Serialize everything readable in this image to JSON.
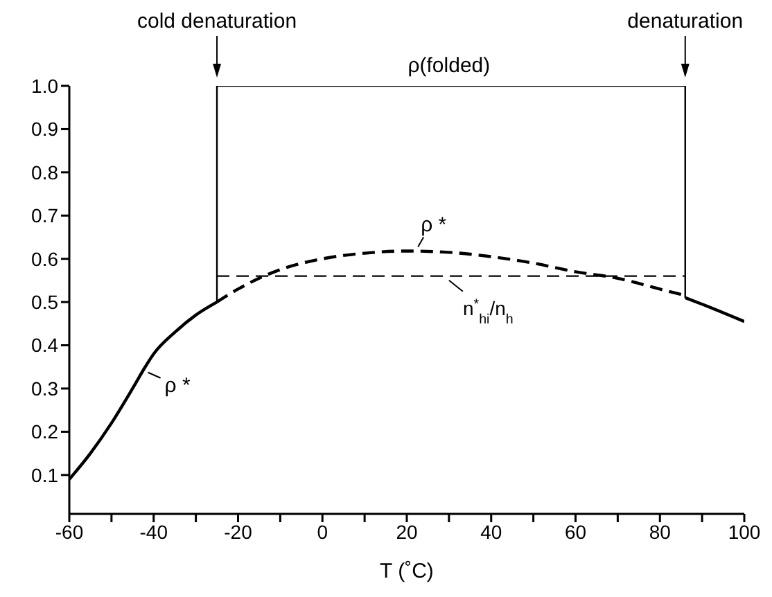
{
  "chart_data": {
    "type": "line",
    "xlabel": "T (˚C)",
    "xlim": [
      -60,
      100
    ],
    "xticks": [
      -60,
      {
        "value": -50,
        "label": null
      },
      -40,
      {
        "value": -30,
        "label": null
      },
      -20,
      {
        "value": -10,
        "label": null
      },
      0,
      {
        "value": 10,
        "label": null
      },
      20,
      {
        "value": 30,
        "label": null
      },
      40,
      {
        "value": 50,
        "label": null
      },
      60,
      {
        "value": 70,
        "label": null
      },
      80,
      {
        "value": 90,
        "label": null
      },
      100
    ],
    "ylim": [
      0.01,
      1.0
    ],
    "yticks": [
      0.1,
      0.2,
      0.3,
      0.4,
      0.5,
      0.6,
      0.7,
      0.8,
      0.9,
      {
        "value": 1.0,
        "label": "1.0"
      }
    ],
    "marker": "none",
    "series": [
      {
        "color": "#000000",
        "line_style": "solid",
        "x": [
          -60,
          -55,
          -50,
          -45,
          -42,
          -40,
          -35,
          -30,
          -25
        ],
        "values": [
          0.09,
          0.15,
          0.22,
          0.3,
          0.35,
          0.38,
          0.43,
          0.47,
          0.5
        ]
      },
      {
        "color": "#000000",
        "line_style": "dashed",
        "x": [
          -25,
          -20,
          -15,
          -10,
          0,
          10,
          20,
          30,
          40,
          50,
          60,
          70,
          80,
          86
        ],
        "values": [
          0.5,
          0.53,
          0.555,
          0.575,
          0.6,
          0.613,
          0.618,
          0.615,
          0.605,
          0.59,
          0.57,
          0.555,
          0.53,
          0.515
        ]
      },
      {
        "color": "#000000",
        "line_style": "solid",
        "x": [
          86,
          90,
          100
        ],
        "values": [
          0.51,
          0.495,
          0.455
        ]
      },
      {
        "color": "#000000",
        "line_style": "solid",
        "x": [
          -25,
          -25,
          86,
          86
        ],
        "values": [
          0.5,
          1.0,
          1.0,
          0.51
        ]
      },
      {
        "color": "#000000",
        "line_style": "dashed",
        "x": [
          -25,
          86
        ],
        "values": [
          0.56,
          0.56
        ]
      }
    ],
    "annotations": [
      {
        "text": "cold denaturation",
        "x": -25,
        "y": 1.0
      },
      {
        "text": "denaturation",
        "x": 86,
        "y": 1.0
      },
      {
        "text": "ρ(folded)",
        "x": 30,
        "y": 1.0
      },
      {
        "text": "ρ *",
        "x": -42,
        "y": 0.35
      },
      {
        "text": "ρ *",
        "x": 22,
        "y": 0.618
      },
      {
        "text": "n$^{*}$$_{hi}$/n$_{h}$",
        "x": 30,
        "y": 0.56
      }
    ]
  }
}
